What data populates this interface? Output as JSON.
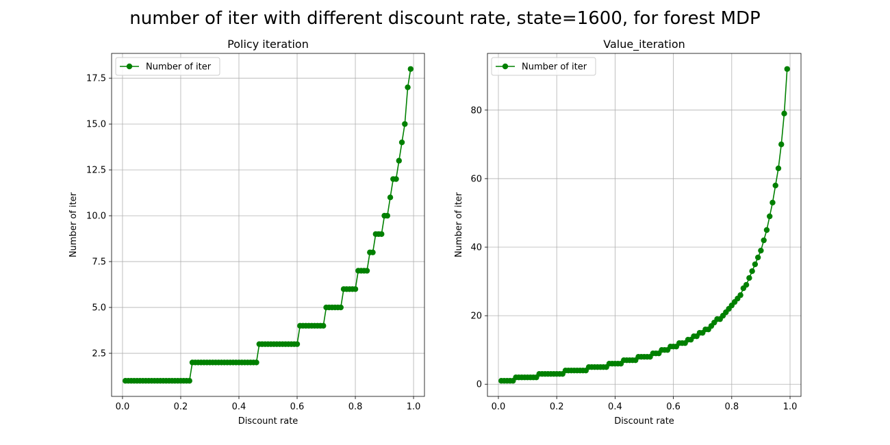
{
  "figure_title": "number of iter with different discount rate, state=1600, for forest MDP",
  "colors": {
    "line": "#008000",
    "grid": "#b0b0b0",
    "axis": "#000000",
    "legend_border": "#cccccc"
  },
  "chart_data": [
    {
      "type": "line",
      "title": "Policy iteration",
      "xlabel": "Discount rate",
      "ylabel": "Number of iter",
      "xlim": [
        -0.0375,
        1.0375
      ],
      "ylim": [
        0.15,
        18.85
      ],
      "xticks": [
        0.0,
        0.2,
        0.4,
        0.6,
        0.8,
        1.0
      ],
      "xtick_labels": [
        "0.0",
        "0.2",
        "0.4",
        "0.6",
        "0.8",
        "1.0"
      ],
      "yticks": [
        2.5,
        5.0,
        7.5,
        10.0,
        12.5,
        15.0,
        17.5
      ],
      "ytick_labels": [
        "2.5",
        "5.0",
        "7.5",
        "10.0",
        "12.5",
        "15.0",
        "17.5"
      ],
      "grid": true,
      "legend_position": "upper left",
      "series": [
        {
          "name": "Number of iter",
          "marker": "circle",
          "x": [
            0.01,
            0.02,
            0.03,
            0.04,
            0.05,
            0.06,
            0.07,
            0.08,
            0.09,
            0.1,
            0.11,
            0.12,
            0.13,
            0.14,
            0.15,
            0.16,
            0.17,
            0.18,
            0.19,
            0.2,
            0.21,
            0.22,
            0.23,
            0.24,
            0.25,
            0.26,
            0.27,
            0.28,
            0.29,
            0.3,
            0.31,
            0.32,
            0.33,
            0.34,
            0.35,
            0.36,
            0.37,
            0.38,
            0.39,
            0.4,
            0.41,
            0.42,
            0.43,
            0.44,
            0.45,
            0.46,
            0.47,
            0.48,
            0.49,
            0.5,
            0.51,
            0.52,
            0.53,
            0.54,
            0.55,
            0.56,
            0.57,
            0.58,
            0.59,
            0.6,
            0.61,
            0.62,
            0.63,
            0.64,
            0.65,
            0.66,
            0.67,
            0.68,
            0.69,
            0.7,
            0.71,
            0.72,
            0.73,
            0.74,
            0.75,
            0.76,
            0.77,
            0.78,
            0.79,
            0.8,
            0.81,
            0.82,
            0.83,
            0.84,
            0.85,
            0.86,
            0.87,
            0.88,
            0.89,
            0.9,
            0.91,
            0.92,
            0.93,
            0.94,
            0.95,
            0.96,
            0.97,
            0.98,
            0.99
          ],
          "y": [
            1,
            1,
            1,
            1,
            1,
            1,
            1,
            1,
            1,
            1,
            1,
            1,
            1,
            1,
            1,
            1,
            1,
            1,
            1,
            1,
            1,
            1,
            1,
            2,
            2,
            2,
            2,
            2,
            2,
            2,
            2,
            2,
            2,
            2,
            2,
            2,
            2,
            2,
            2,
            2,
            2,
            2,
            2,
            2,
            2,
            2,
            3,
            3,
            3,
            3,
            3,
            3,
            3,
            3,
            3,
            3,
            3,
            3,
            3,
            3,
            4,
            4,
            4,
            4,
            4,
            4,
            4,
            4,
            4,
            5,
            5,
            5,
            5,
            5,
            5,
            6,
            6,
            6,
            6,
            6,
            7,
            7,
            7,
            7,
            8,
            8,
            9,
            9,
            9,
            10,
            10,
            11,
            12,
            12,
            13,
            14,
            15,
            17,
            18
          ]
        }
      ]
    },
    {
      "type": "line",
      "title": "Value_iteration",
      "xlabel": "Discount rate",
      "ylabel": "Number of iter",
      "xlim": [
        -0.0375,
        1.0375
      ],
      "ylim": [
        -3.55,
        96.55
      ],
      "xticks": [
        0.0,
        0.2,
        0.4,
        0.6,
        0.8,
        1.0
      ],
      "xtick_labels": [
        "0.0",
        "0.2",
        "0.4",
        "0.6",
        "0.8",
        "1.0"
      ],
      "yticks": [
        0,
        20,
        40,
        60,
        80
      ],
      "ytick_labels": [
        "0",
        "20",
        "40",
        "60",
        "80"
      ],
      "grid": true,
      "legend_position": "upper left",
      "series": [
        {
          "name": "Number of iter",
          "marker": "circle",
          "x": [
            0.01,
            0.02,
            0.03,
            0.04,
            0.05,
            0.06,
            0.07,
            0.08,
            0.09,
            0.1,
            0.11,
            0.12,
            0.13,
            0.14,
            0.15,
            0.16,
            0.17,
            0.18,
            0.19,
            0.2,
            0.21,
            0.22,
            0.23,
            0.24,
            0.25,
            0.26,
            0.27,
            0.28,
            0.29,
            0.3,
            0.31,
            0.32,
            0.33,
            0.34,
            0.35,
            0.36,
            0.37,
            0.38,
            0.39,
            0.4,
            0.41,
            0.42,
            0.43,
            0.44,
            0.45,
            0.46,
            0.47,
            0.48,
            0.49,
            0.5,
            0.51,
            0.52,
            0.53,
            0.54,
            0.55,
            0.56,
            0.57,
            0.58,
            0.59,
            0.6,
            0.61,
            0.62,
            0.63,
            0.64,
            0.65,
            0.66,
            0.67,
            0.68,
            0.69,
            0.7,
            0.71,
            0.72,
            0.73,
            0.74,
            0.75,
            0.76,
            0.77,
            0.78,
            0.79,
            0.8,
            0.81,
            0.82,
            0.83,
            0.84,
            0.85,
            0.86,
            0.87,
            0.88,
            0.89,
            0.9,
            0.91,
            0.92,
            0.93,
            0.94,
            0.95,
            0.96,
            0.97,
            0.98,
            0.99
          ],
          "y": [
            1,
            1,
            1,
            1,
            1,
            2,
            2,
            2,
            2,
            2,
            2,
            2,
            2,
            3,
            3,
            3,
            3,
            3,
            3,
            3,
            3,
            3,
            4,
            4,
            4,
            4,
            4,
            4,
            4,
            4,
            5,
            5,
            5,
            5,
            5,
            5,
            5,
            6,
            6,
            6,
            6,
            6,
            7,
            7,
            7,
            7,
            7,
            8,
            8,
            8,
            8,
            8,
            9,
            9,
            9,
            10,
            10,
            10,
            11,
            11,
            11,
            12,
            12,
            12,
            13,
            13,
            14,
            14,
            15,
            15,
            16,
            16,
            17,
            18,
            19,
            19,
            20,
            21,
            22,
            23,
            24,
            25,
            26,
            28,
            29,
            31,
            33,
            35,
            37,
            39,
            42,
            45,
            49,
            53,
            58,
            63,
            70,
            79,
            92
          ]
        }
      ]
    }
  ]
}
